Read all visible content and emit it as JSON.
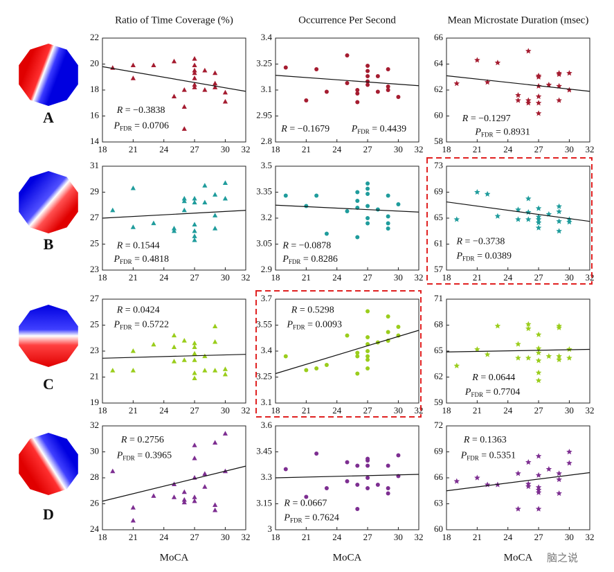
{
  "chart_data": [
    {
      "type": "scatter",
      "title": "Ratio of Time Coverage (%)",
      "row_label": "A",
      "color": "#a51c30",
      "marker": "triangle",
      "xlim": [
        18,
        32
      ],
      "xticks": [
        18,
        21,
        24,
        27,
        30,
        32
      ],
      "ylim": [
        14,
        22
      ],
      "yticks": [
        14,
        16,
        18,
        20,
        22
      ],
      "x": [
        19,
        21,
        21,
        23,
        25,
        25,
        26,
        26,
        26,
        27,
        27,
        27,
        27,
        27,
        27,
        27,
        28,
        28,
        29,
        29,
        29,
        30,
        30
      ],
      "y": [
        19.7,
        19.9,
        18.9,
        19.9,
        20.2,
        17.5,
        16.7,
        15.0,
        18.0,
        20.4,
        19.9,
        19.5,
        19.3,
        18.9,
        18.4,
        18.2,
        19.5,
        18.0,
        19.3,
        18.5,
        18.2,
        17.8,
        17.1
      ],
      "fit": {
        "x": [
          18,
          32
        ],
        "y": [
          19.8,
          17.9
        ]
      },
      "r_symbol": "R",
      "r_text": " = −0.3838",
      "p_symbol": "P",
      "p_subscript": "FDR",
      "p_text": " = 0.0706",
      "highlight": false
    },
    {
      "type": "scatter",
      "title": "Occurrence Per Second",
      "color": "#a51c30",
      "marker": "circle",
      "xlim": [
        18,
        32
      ],
      "xticks": [
        18,
        21,
        24,
        27,
        30,
        32
      ],
      "ylim": [
        2.8,
        3.4
      ],
      "yticks": [
        2.8,
        2.95,
        3.1,
        3.25,
        3.4
      ],
      "x": [
        19,
        21,
        22,
        23,
        25,
        25,
        26,
        26,
        26,
        27,
        27,
        27,
        27,
        27,
        28,
        28,
        29,
        29,
        29,
        30
      ],
      "y": [
        3.23,
        3.04,
        3.22,
        3.09,
        3.3,
        3.14,
        3.1,
        3.08,
        3.03,
        3.24,
        3.21,
        3.18,
        3.15,
        3.13,
        3.09,
        3.18,
        3.22,
        3.12,
        3.1,
        3.06
      ],
      "fit": {
        "x": [
          18,
          32
        ],
        "y": [
          3.185,
          3.125
        ]
      },
      "r_symbol": "R",
      "r_text": " = −0.1679",
      "p_symbol": "P",
      "p_subscript": "FDR",
      "p_text": " = 0.4439",
      "highlight": false
    },
    {
      "type": "scatter",
      "title": "Mean Microstate Duration (msec)",
      "color": "#a51c30",
      "marker": "star",
      "xlim": [
        18,
        32
      ],
      "xticks": [
        18,
        21,
        24,
        27,
        30,
        32
      ],
      "ylim": [
        58,
        66
      ],
      "yticks": [
        58,
        60,
        62,
        64,
        66
      ],
      "x": [
        19,
        21,
        22,
        23,
        25,
        25,
        26,
        26,
        26,
        27,
        27,
        27,
        27,
        27,
        27,
        28,
        29,
        29,
        29,
        29,
        30,
        30
      ],
      "y": [
        62.5,
        64.3,
        62.6,
        64.1,
        61.6,
        61.2,
        65.0,
        61.2,
        61.0,
        63.1,
        63.0,
        62.3,
        61.5,
        61.0,
        60.2,
        62.4,
        63.3,
        63.2,
        62.3,
        61.2,
        63.3,
        62.0
      ],
      "fit": {
        "x": [
          18,
          32
        ],
        "y": [
          63.1,
          61.9
        ]
      },
      "r_symbol": "R",
      "r_text": " = −0.1297",
      "p_symbol": "P",
      "p_subscript": "FDR",
      "p_text": " = 0.8931",
      "highlight": false
    },
    {
      "type": "scatter",
      "row_label": "B",
      "color": "#1f9c9c",
      "marker": "triangle",
      "xlim": [
        18,
        32
      ],
      "xticks": [
        18,
        21,
        24,
        27,
        30,
        32
      ],
      "ylim": [
        23,
        31
      ],
      "yticks": [
        23,
        25,
        27,
        29,
        31
      ],
      "x": [
        19,
        21,
        21,
        23,
        25,
        25,
        26,
        26,
        26,
        27,
        27,
        27,
        27,
        27,
        27,
        28,
        28,
        29,
        29,
        30,
        30,
        29
      ],
      "y": [
        27.6,
        29.3,
        26.3,
        26.6,
        26.2,
        26.0,
        28.5,
        28.3,
        27.6,
        28.5,
        28.2,
        26.5,
        26.0,
        25.6,
        25.3,
        29.5,
        28.2,
        28.8,
        27.2,
        29.7,
        28.5,
        26.2
      ],
      "fit": {
        "x": [
          18,
          32
        ],
        "y": [
          27.0,
          27.6
        ]
      },
      "r_symbol": "R",
      "r_text": " = 0.1544",
      "p_symbol": "P",
      "p_subscript": "FDR",
      "p_text": " = 0.4818",
      "highlight": false
    },
    {
      "type": "scatter",
      "color": "#1f9c9c",
      "marker": "circle",
      "xlim": [
        18,
        32
      ],
      "xticks": [
        18,
        21,
        24,
        27,
        30,
        32
      ],
      "ylim": [
        2.9,
        3.5
      ],
      "yticks": [
        2.9,
        3.05,
        3.2,
        3.35,
        3.5
      ],
      "x": [
        19,
        21,
        22,
        23,
        25,
        26,
        26,
        26,
        26,
        27,
        27,
        27,
        27,
        27,
        27,
        28,
        29,
        29,
        29,
        29,
        30
      ],
      "y": [
        3.33,
        3.27,
        3.33,
        3.11,
        3.24,
        3.35,
        3.3,
        3.26,
        3.09,
        3.4,
        3.37,
        3.34,
        3.27,
        3.2,
        3.17,
        3.25,
        3.33,
        3.21,
        3.17,
        3.14,
        3.28
      ],
      "fit": {
        "x": [
          18,
          32
        ],
        "y": [
          3.275,
          3.235
        ]
      },
      "r_symbol": "R",
      "r_text": " = −0.0878",
      "p_symbol": "P",
      "p_subscript": "FDR",
      "p_text": " = 0.8286",
      "highlight": false
    },
    {
      "type": "scatter",
      "color": "#1f9c9c",
      "marker": "star",
      "xlim": [
        18,
        32
      ],
      "xticks": [
        18,
        21,
        24,
        27,
        30,
        32
      ],
      "ylim": [
        57,
        73
      ],
      "yticks": [
        57,
        61,
        65,
        69,
        73
      ],
      "x": [
        19,
        21,
        22,
        23,
        25,
        25,
        26,
        26,
        26,
        27,
        27,
        27,
        27,
        27,
        28,
        29,
        29,
        29,
        29,
        30,
        30
      ],
      "y": [
        64.8,
        69.0,
        68.7,
        65.3,
        66.3,
        64.8,
        68.0,
        64.8,
        65.9,
        66.5,
        65.2,
        64.8,
        64.3,
        63.5,
        65.6,
        66.8,
        66.0,
        64.5,
        63.0,
        64.8,
        64.4
      ],
      "fit": {
        "x": [
          18,
          32
        ],
        "y": [
          67.5,
          64.5
        ]
      },
      "r_symbol": "R",
      "r_text": " = −0.3738",
      "p_symbol": "P",
      "p_subscript": "FDR",
      "p_text": " = 0.0389",
      "highlight": true
    },
    {
      "type": "scatter",
      "row_label": "C",
      "color": "#9acd1c",
      "marker": "triangle",
      "xlim": [
        18,
        32
      ],
      "xticks": [
        18,
        21,
        24,
        27,
        30,
        32
      ],
      "ylim": [
        19,
        27
      ],
      "yticks": [
        19,
        21,
        23,
        25,
        27
      ],
      "x": [
        19,
        21,
        21,
        23,
        25,
        25,
        25,
        26,
        26,
        27,
        27,
        27,
        27,
        27,
        27,
        28,
        28,
        29,
        29,
        29,
        30,
        30
      ],
      "y": [
        21.5,
        23.0,
        21.5,
        23.5,
        24.2,
        22.2,
        23.3,
        23.8,
        22.3,
        23.6,
        23.3,
        22.8,
        22.3,
        21.3,
        20.9,
        22.6,
        21.5,
        24.9,
        23.7,
        21.5,
        21.6,
        21.2
      ],
      "fit": {
        "x": [
          18,
          32
        ],
        "y": [
          22.45,
          22.75
        ]
      },
      "r_symbol": "R",
      "r_text": " = 0.0424",
      "p_symbol": "P",
      "p_subscript": "FDR",
      "p_text": " = 0.5722",
      "highlight": false
    },
    {
      "type": "scatter",
      "color": "#9acd1c",
      "marker": "circle",
      "xlim": [
        18,
        32
      ],
      "xticks": [
        18,
        21,
        24,
        27,
        30,
        32
      ],
      "ylim": [
        3.1,
        3.7
      ],
      "yticks": [
        3.1,
        3.25,
        3.4,
        3.55,
        3.7
      ],
      "x": [
        19,
        21,
        22,
        23,
        25,
        26,
        26,
        26,
        27,
        27,
        27,
        27,
        27,
        27,
        27,
        28,
        29,
        29,
        29,
        30,
        30
      ],
      "y": [
        3.37,
        3.29,
        3.3,
        3.32,
        3.49,
        3.37,
        3.27,
        3.39,
        3.63,
        3.48,
        3.44,
        3.4,
        3.37,
        3.35,
        3.3,
        3.45,
        3.6,
        3.51,
        3.46,
        3.54,
        3.49
      ],
      "fit": {
        "x": [
          18,
          32
        ],
        "y": [
          3.27,
          3.52
        ]
      },
      "r_symbol": "R",
      "r_text": " = 0.5298",
      "p_symbol": "P",
      "p_subscript": "FDR",
      "p_text": " = 0.0093",
      "highlight": true
    },
    {
      "type": "scatter",
      "color": "#9acd1c",
      "marker": "star",
      "xlim": [
        18,
        32
      ],
      "xticks": [
        18,
        21,
        24,
        27,
        30,
        32
      ],
      "ylim": [
        59,
        71
      ],
      "yticks": [
        59,
        62,
        65,
        68,
        71
      ],
      "x": [
        19,
        21,
        22,
        23,
        25,
        25,
        26,
        26,
        26,
        27,
        27,
        27,
        27,
        27,
        27,
        28,
        29,
        29,
        29,
        29,
        30,
        30
      ],
      "y": [
        63.3,
        65.2,
        64.6,
        67.9,
        65.8,
        64.2,
        68.1,
        67.6,
        64.2,
        66.9,
        65.3,
        63.9,
        62.5,
        61.6,
        64.8,
        64.4,
        67.9,
        67.7,
        64.4,
        64.0,
        65.2,
        64.2
      ],
      "fit": {
        "x": [
          18,
          32
        ],
        "y": [
          64.9,
          65.2
        ]
      },
      "r_symbol": "R",
      "r_text": " = 0.0644",
      "p_symbol": "P",
      "p_subscript": "FDR",
      "p_text": " = 0.7704",
      "highlight": false
    },
    {
      "type": "scatter",
      "row_label": "D",
      "xlabel": "MoCA",
      "color": "#7d2e91",
      "marker": "triangle",
      "xlim": [
        18,
        32
      ],
      "xticks": [
        18,
        21,
        24,
        27,
        30,
        32
      ],
      "ylim": [
        24,
        32
      ],
      "yticks": [
        24,
        26,
        28,
        30,
        32
      ],
      "x": [
        19,
        21,
        21,
        23,
        25,
        25,
        26,
        26,
        26,
        27,
        27,
        27,
        27,
        27,
        28,
        28,
        29,
        29,
        29,
        30,
        30
      ],
      "y": [
        28.5,
        25.7,
        24.7,
        26.6,
        27.5,
        26.5,
        26.9,
        26.3,
        26.1,
        30.5,
        29.5,
        28.0,
        26.5,
        26.2,
        28.3,
        27.3,
        30.7,
        25.9,
        25.5,
        31.4,
        28.5
      ],
      "fit": {
        "x": [
          18,
          32
        ],
        "y": [
          26.2,
          28.9
        ]
      },
      "r_symbol": "R",
      "r_text": " = 0.2756",
      "p_symbol": "P",
      "p_subscript": "FDR",
      "p_text": " = 0.3965",
      "highlight": false
    },
    {
      "type": "scatter",
      "xlabel": "MoCA",
      "color": "#7d2e91",
      "marker": "circle",
      "xlim": [
        18,
        32
      ],
      "xticks": [
        18,
        21,
        24,
        27,
        30,
        32
      ],
      "ylim": [
        3,
        3.6
      ],
      "yticks": [
        3,
        3.15,
        3.3,
        3.45,
        3.6
      ],
      "x": [
        19,
        21,
        22,
        23,
        25,
        25,
        26,
        26,
        26,
        27,
        27,
        27,
        27,
        27,
        28,
        29,
        29,
        29,
        30,
        30
      ],
      "y": [
        3.35,
        3.19,
        3.44,
        3.24,
        3.39,
        3.28,
        3.37,
        3.26,
        3.12,
        3.41,
        3.4,
        3.37,
        3.3,
        3.24,
        3.26,
        3.37,
        3.24,
        3.21,
        3.43,
        3.31
      ],
      "fit": {
        "x": [
          18,
          32
        ],
        "y": [
          3.3,
          3.32
        ]
      },
      "r_symbol": "R",
      "r_text": " = 0.0667",
      "p_symbol": "P",
      "p_subscript": "FDR",
      "p_text": " = 0.7624",
      "highlight": false
    },
    {
      "type": "scatter",
      "xlabel": "MoCA",
      "color": "#7d2e91",
      "marker": "star",
      "xlim": [
        18,
        32
      ],
      "xticks": [
        18,
        21,
        24,
        27,
        30,
        32
      ],
      "ylim": [
        60,
        72
      ],
      "yticks": [
        60,
        63,
        66,
        69,
        72
      ],
      "x": [
        19,
        21,
        22,
        23,
        25,
        25,
        26,
        26,
        26,
        27,
        27,
        27,
        27,
        27,
        27,
        28,
        29,
        29,
        29,
        30,
        30
      ],
      "y": [
        65.6,
        66.0,
        65.2,
        65.2,
        66.5,
        62.4,
        67.8,
        65.3,
        65.0,
        68.5,
        66.3,
        64.9,
        64.6,
        64.3,
        62.4,
        67.0,
        65.8,
        64.2,
        66.5,
        69.0,
        67.7
      ],
      "fit": {
        "x": [
          18,
          32
        ],
        "y": [
          64.5,
          66.6
        ]
      },
      "r_symbol": "R",
      "r_text": " = 0.1363",
      "p_symbol": "P",
      "p_subscript": "FDR",
      "p_text": " = 0.5351",
      "highlight": false
    }
  ],
  "watermark": "脑之说"
}
